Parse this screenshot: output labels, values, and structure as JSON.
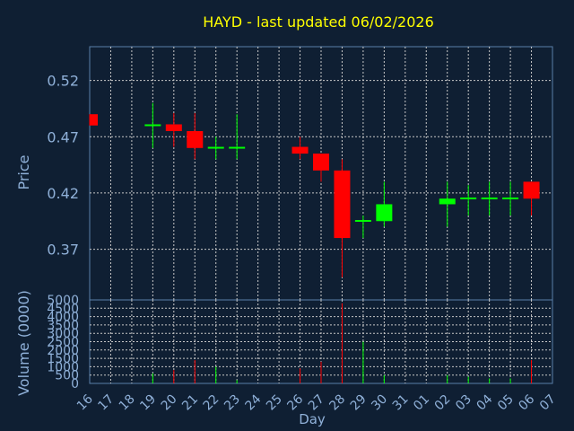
{
  "chart_data": {
    "type": "candlestick",
    "title": "HAYD - last updated 06/02/2026",
    "price_ylabel": "Price",
    "volume_ylabel": "Volume (0000)",
    "xlabel": "Day",
    "price_ylim": [
      0.325,
      0.55
    ],
    "price_ticks": [
      "0.52",
      "0.47",
      "0.42",
      "0.37"
    ],
    "volume_ylim": [
      0,
      5000
    ],
    "volume_ticks": [
      "5000",
      "4500",
      "4000",
      "3500",
      "3000",
      "2500",
      "2000",
      "1500",
      "1000",
      "500",
      "0"
    ],
    "x_ticks": [
      "16",
      "17",
      "18",
      "19",
      "20",
      "21",
      "22",
      "23",
      "24",
      "25",
      "26",
      "27",
      "28",
      "29",
      "30",
      "31",
      "01",
      "02",
      "03",
      "04",
      "05",
      "06",
      "07"
    ],
    "grid": true,
    "colors": {
      "background": "#0f1f33",
      "plot_border": "#5a7fa8",
      "grid": "#c8c8c8",
      "title": "#ffff00",
      "axis_text": "#8fb0d8",
      "up": "#00ff00",
      "down": "#ff0000"
    },
    "candles": [
      {
        "x": "16",
        "open": 0.49,
        "high": 0.49,
        "low": 0.48,
        "close": 0.48,
        "volume": 0
      },
      {
        "x": "19",
        "open": 0.48,
        "high": 0.5,
        "low": 0.46,
        "close": 0.481,
        "volume": 600
      },
      {
        "x": "20",
        "open": 0.481,
        "high": 0.491,
        "low": 0.461,
        "close": 0.475,
        "volume": 800
      },
      {
        "x": "21",
        "open": 0.475,
        "high": 0.491,
        "low": 0.45,
        "close": 0.46,
        "volume": 1400
      },
      {
        "x": "22",
        "open": 0.46,
        "high": 0.47,
        "low": 0.45,
        "close": 0.461,
        "volume": 1000
      },
      {
        "x": "23",
        "open": 0.46,
        "high": 0.49,
        "low": 0.45,
        "close": 0.461,
        "volume": 200
      },
      {
        "x": "26",
        "open": 0.461,
        "high": 0.47,
        "low": 0.45,
        "close": 0.455,
        "volume": 900
      },
      {
        "x": "27",
        "open": 0.455,
        "high": 0.455,
        "low": 0.43,
        "close": 0.44,
        "volume": 1300
      },
      {
        "x": "28",
        "open": 0.44,
        "high": 0.45,
        "low": 0.345,
        "close": 0.38,
        "volume": 4800
      },
      {
        "x": "29",
        "open": 0.395,
        "high": 0.4,
        "low": 0.38,
        "close": 0.396,
        "volume": 2500
      },
      {
        "x": "30",
        "open": 0.395,
        "high": 0.43,
        "low": 0.39,
        "close": 0.41,
        "volume": 500
      },
      {
        "x": "02",
        "open": 0.41,
        "high": 0.43,
        "low": 0.39,
        "close": 0.415,
        "volume": 500
      },
      {
        "x": "03",
        "open": 0.415,
        "high": 0.427,
        "low": 0.4,
        "close": 0.416,
        "volume": 400
      },
      {
        "x": "04",
        "open": 0.415,
        "high": 0.43,
        "low": 0.4,
        "close": 0.416,
        "volume": 300
      },
      {
        "x": "05",
        "open": 0.415,
        "high": 0.43,
        "low": 0.4,
        "close": 0.416,
        "volume": 300
      },
      {
        "x": "06",
        "open": 0.43,
        "high": 0.43,
        "low": 0.4,
        "close": 0.415,
        "volume": 1400
      }
    ]
  }
}
